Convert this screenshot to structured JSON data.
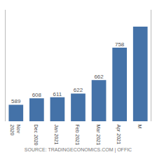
{
  "chart_data": {
    "type": "bar",
    "categories": [
      "Nov\n2020",
      "Dec 2020",
      "Jan 2021",
      "Feb 2021",
      "Mar 2021",
      "Apr 2021",
      "M"
    ],
    "values": [
      589,
      608,
      611,
      622,
      662,
      758,
      820
    ],
    "value_labels": [
      "589",
      "608",
      "611",
      "622",
      "662",
      "758",
      null
    ],
    "data_labels": true,
    "color": "#4472a8",
    "ylim": [
      540,
      870
    ],
    "grid": false,
    "tick_labels": "x",
    "annotations": [
      "SOURCE: TRADINGECONOMICS.COM | OFFIC"
    ]
  }
}
